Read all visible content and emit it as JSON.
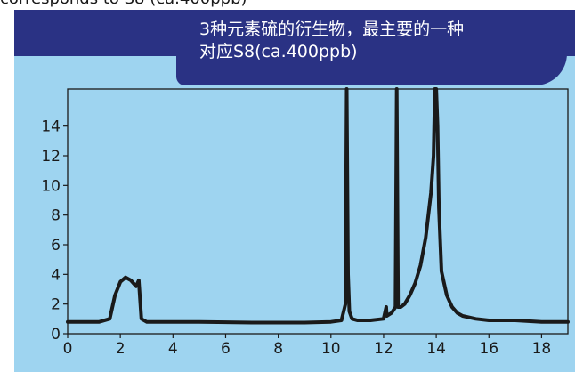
{
  "page": {
    "top_caption": "corresponds to S8 (ca.400ppb)",
    "callout_line1": "3种元素硫的衍生物，最主要的一种",
    "callout_line2": "对应S8(ca.400ppb)"
  },
  "colors": {
    "banner": "#2a3284",
    "plot_background": "#9ed4f0",
    "trace": "#1a1a1a"
  },
  "chart_data": {
    "type": "line",
    "title": "",
    "xlabel": "",
    "ylabel": "",
    "xlim": [
      0,
      19
    ],
    "ylim": [
      0,
      16.5
    ],
    "x_ticks": [
      "0",
      "2",
      "4",
      "6",
      "8",
      "10",
      "12",
      "14",
      "16",
      "18"
    ],
    "y_ticks": [
      "0",
      "2",
      "4",
      "6",
      "8",
      "10",
      "12",
      "14"
    ],
    "grid": false,
    "legend": "none",
    "series": [
      {
        "x": [
          0.0,
          1.2,
          1.6,
          1.8,
          2.0,
          2.2,
          2.4,
          2.6,
          2.7,
          2.8,
          3.0,
          5.0,
          7.0,
          9.0,
          10.0,
          10.4,
          10.55,
          10.6,
          10.65,
          10.7,
          10.8,
          11.0,
          11.5,
          12.0,
          12.1,
          12.12,
          12.3,
          12.45,
          12.5,
          12.55,
          12.65,
          12.8,
          13.0,
          13.2,
          13.4,
          13.6,
          13.8,
          13.9,
          13.95,
          14.0,
          14.05,
          14.1,
          14.2,
          14.4,
          14.6,
          14.8,
          15.0,
          15.5,
          16.0,
          17.0,
          18.0,
          19.0
        ],
        "y": [
          0.8,
          0.8,
          1.0,
          2.6,
          3.5,
          3.8,
          3.6,
          3.2,
          3.6,
          1.0,
          0.8,
          0.8,
          0.75,
          0.75,
          0.8,
          0.9,
          2.0,
          16.5,
          4.0,
          1.5,
          1.0,
          0.9,
          0.9,
          1.0,
          1.8,
          1.2,
          1.4,
          1.8,
          16.5,
          1.8,
          1.8,
          2.0,
          2.6,
          3.4,
          4.6,
          6.5,
          9.5,
          12.0,
          16.5,
          16.5,
          14.0,
          8.5,
          4.2,
          2.6,
          1.8,
          1.4,
          1.2,
          1.0,
          0.9,
          0.9,
          0.8,
          0.8
        ]
      }
    ]
  }
}
